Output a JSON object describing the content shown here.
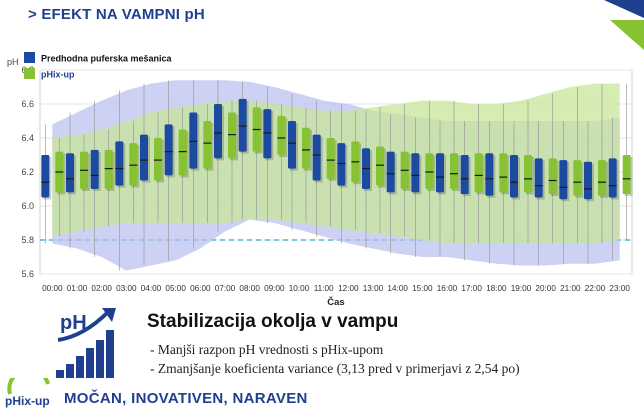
{
  "header": {
    "title": "> EFEKT NA VAMPNI pH"
  },
  "colors": {
    "blue": "#1c4aa0",
    "green": "#86c232",
    "band_blue": "#b8bff0",
    "band_green": "#c7e69a",
    "threshold": "#4fb6dd",
    "brand": "#1f3f8f"
  },
  "chart_data": {
    "type": "box",
    "ylabel": "pH",
    "xlabel": "Čas",
    "ylim": [
      5.6,
      6.8
    ],
    "yticks": [
      5.6,
      5.8,
      6.0,
      6.2,
      6.4,
      6.6,
      6.8
    ],
    "threshold": 5.8,
    "categories": [
      "00:00",
      "01:00",
      "02:00",
      "03:00",
      "04:00",
      "05:00",
      "06:00",
      "07:00",
      "08:00",
      "09:00",
      "10:00",
      "11:00",
      "12:00",
      "13:00",
      "14:00",
      "15:00",
      "16:00",
      "17:00",
      "18:00",
      "19:00",
      "20:00",
      "21:00",
      "22:00",
      "23:00"
    ],
    "legend": [
      {
        "name": "Predhodna puferska mešanica",
        "color": "#1c4aa0"
      },
      {
        "name": "pHix-up",
        "color": "#86c232"
      }
    ],
    "series": [
      {
        "name": "Predhodna puferska mešanica",
        "q1": [
          6.05,
          6.08,
          6.1,
          6.12,
          6.15,
          6.18,
          6.22,
          6.28,
          6.32,
          6.28,
          6.22,
          6.15,
          6.12,
          6.1,
          6.08,
          6.08,
          6.08,
          6.07,
          6.06,
          6.05,
          6.05,
          6.04,
          6.04,
          6.05
        ],
        "median": [
          6.14,
          6.16,
          6.18,
          6.22,
          6.27,
          6.32,
          6.38,
          6.43,
          6.47,
          6.43,
          6.37,
          6.3,
          6.25,
          6.22,
          6.19,
          6.18,
          6.17,
          6.16,
          6.16,
          6.14,
          6.12,
          6.11,
          6.1,
          6.12
        ],
        "q3": [
          6.3,
          6.31,
          6.33,
          6.38,
          6.42,
          6.48,
          6.55,
          6.6,
          6.63,
          6.57,
          6.5,
          6.42,
          6.37,
          6.34,
          6.32,
          6.31,
          6.31,
          6.3,
          6.31,
          6.3,
          6.28,
          6.27,
          6.26,
          6.28
        ],
        "band_low": [
          5.78,
          5.75,
          5.7,
          5.62,
          5.65,
          5.68,
          5.75,
          5.85,
          5.92,
          5.9,
          5.86,
          5.82,
          5.78,
          5.75,
          5.72,
          5.7,
          5.7,
          5.68,
          5.66,
          5.65,
          5.65,
          5.66,
          5.66,
          5.68
        ],
        "band_high": [
          6.48,
          6.55,
          6.62,
          6.68,
          6.72,
          6.74,
          6.74,
          6.74,
          6.73,
          6.7,
          6.66,
          6.62,
          6.6,
          6.56,
          6.54,
          6.52,
          6.5,
          6.5,
          6.5,
          6.5,
          6.5,
          6.5,
          6.5,
          6.52
        ]
      },
      {
        "name": "pHix-up",
        "q1": [
          6.08,
          6.1,
          6.1,
          6.12,
          6.15,
          6.18,
          6.22,
          6.28,
          6.32,
          6.3,
          6.22,
          6.16,
          6.14,
          6.12,
          6.1,
          6.1,
          6.1,
          6.08,
          6.08,
          6.08,
          6.07,
          6.06,
          6.06,
          6.07
        ],
        "median": [
          6.2,
          6.21,
          6.22,
          6.24,
          6.27,
          6.32,
          6.37,
          6.42,
          6.45,
          6.4,
          6.33,
          6.27,
          6.26,
          6.24,
          6.21,
          6.2,
          6.19,
          6.18,
          6.17,
          6.16,
          6.15,
          6.14,
          6.14,
          6.16
        ],
        "q3": [
          6.32,
          6.32,
          6.33,
          6.37,
          6.4,
          6.45,
          6.5,
          6.55,
          6.58,
          6.53,
          6.46,
          6.4,
          6.38,
          6.35,
          6.32,
          6.31,
          6.31,
          6.31,
          6.31,
          6.3,
          6.28,
          6.27,
          6.27,
          6.3
        ],
        "band_low": [
          5.82,
          5.85,
          5.88,
          5.9,
          5.9,
          5.9,
          5.9,
          5.9,
          5.92,
          5.92,
          5.9,
          5.88,
          5.86,
          5.84,
          5.82,
          5.8,
          5.78,
          5.78,
          5.78,
          5.78,
          5.78,
          5.78,
          5.78,
          5.8
        ],
        "band_high": [
          6.4,
          6.42,
          6.45,
          6.5,
          6.55,
          6.58,
          6.6,
          6.62,
          6.62,
          6.6,
          6.58,
          6.56,
          6.56,
          6.58,
          6.6,
          6.62,
          6.62,
          6.6,
          6.6,
          6.62,
          6.66,
          6.7,
          6.72,
          6.72
        ]
      }
    ]
  },
  "panel": {
    "headline": "Stabilizacija okolja v vampu",
    "bullets": [
      "- Manjši razpon pH vrednosti s pHix-upom",
      "- Zmanjšanje koeficienta variance (3,13 pred v primerjavi z 2,54 po)"
    ],
    "ph_icon_text": "pH",
    "brand_logo_text": "pHix-up",
    "tagline": "MOČAN, INOVATIVEN, NARAVEN"
  }
}
